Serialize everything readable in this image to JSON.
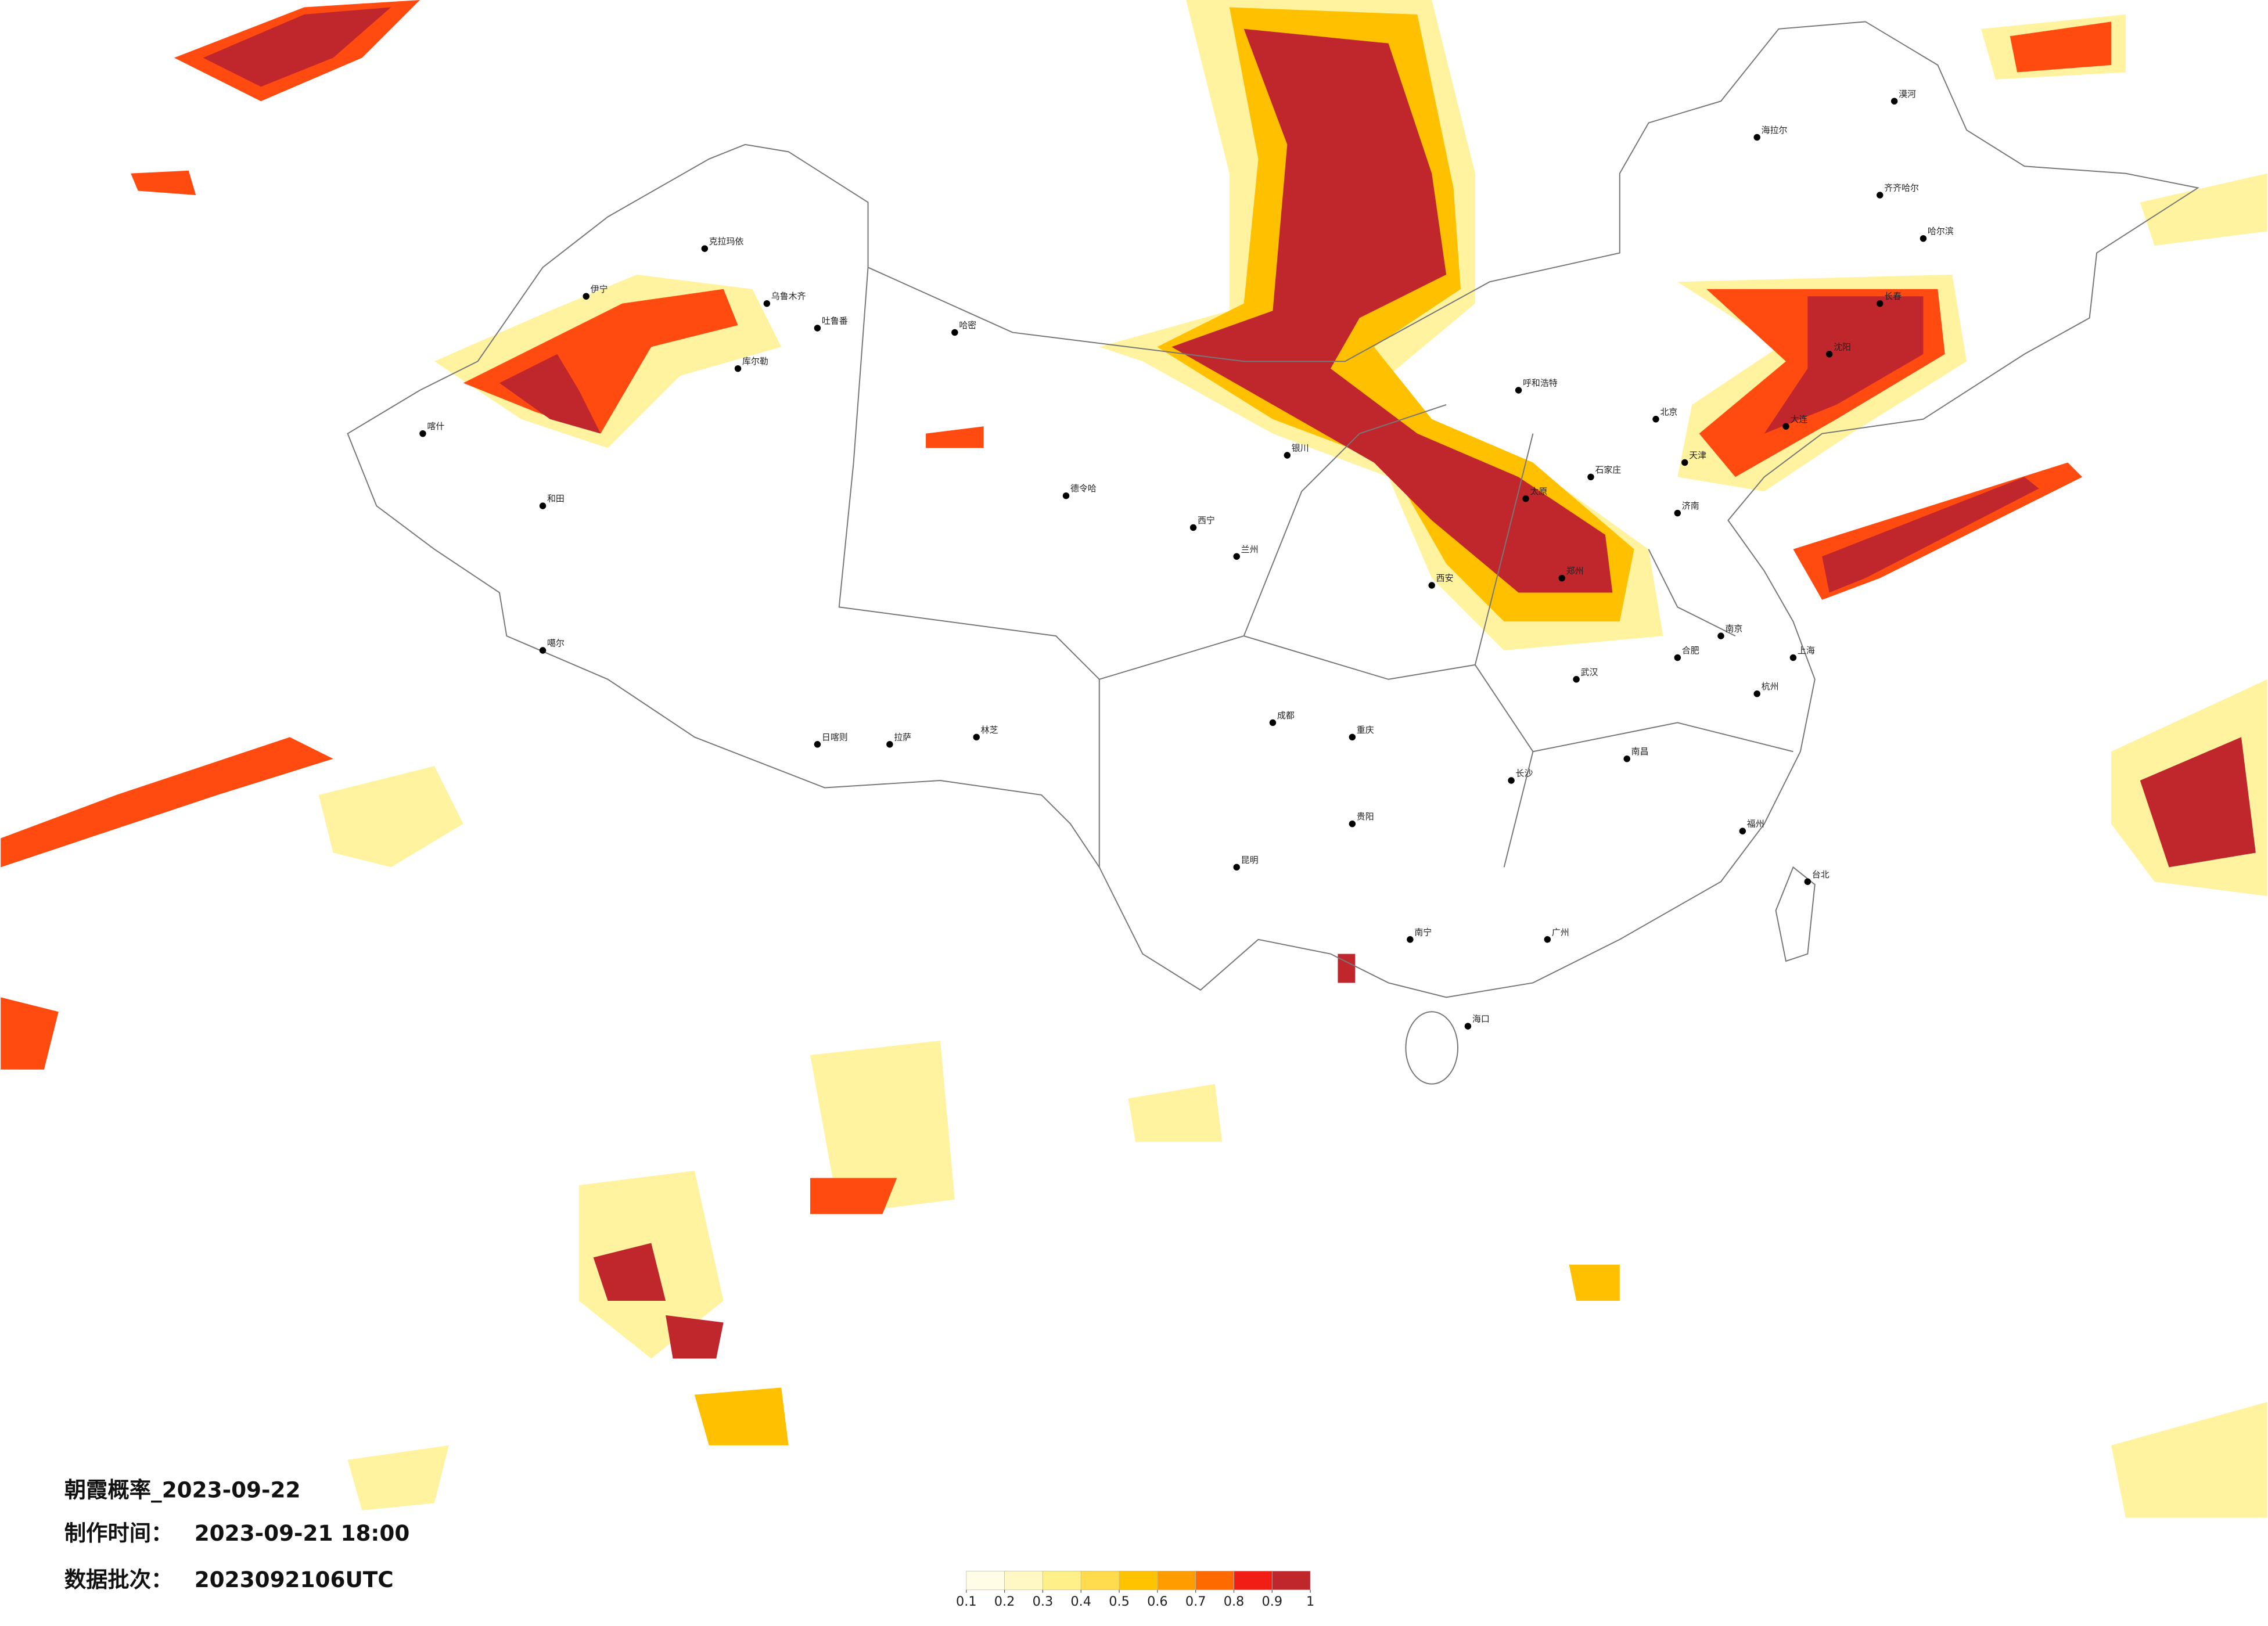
{
  "title": "朝霞概率_2023-09-22",
  "production_label": "制作时间：",
  "production_time": "2023-09-21 18:00",
  "batch_label": "数据批次：",
  "batch": "2023092106UTC",
  "legend": {
    "colors": [
      "#fffde6",
      "#fff8c4",
      "#fff08a",
      "#ffdb4d",
      "#ffc300",
      "#ff9c00",
      "#ff6a00",
      "#f01e14",
      "#c0272d"
    ],
    "ticks": [
      0.1,
      0.2,
      0.3,
      0.4,
      0.5,
      0.6,
      0.7,
      0.8,
      0.9,
      1
    ]
  },
  "cities": [
    {
      "name": "伊宁"
    },
    {
      "name": "克拉玛依"
    },
    {
      "name": "乌鲁木齐"
    },
    {
      "name": "吐鲁番"
    },
    {
      "name": "哈密"
    },
    {
      "name": "库尔勒"
    },
    {
      "name": "喀什"
    },
    {
      "name": "和田"
    },
    {
      "name": "噶尔"
    },
    {
      "name": "日喀则"
    },
    {
      "name": "拉萨"
    },
    {
      "name": "林芝"
    },
    {
      "name": "德令哈"
    },
    {
      "name": "西宁"
    },
    {
      "name": "兰州"
    },
    {
      "name": "银川"
    },
    {
      "name": "呼和浩特"
    },
    {
      "name": "北京"
    },
    {
      "name": "天津"
    },
    {
      "name": "石家庄"
    },
    {
      "name": "太原"
    },
    {
      "name": "济南"
    },
    {
      "name": "郑州"
    },
    {
      "name": "西安"
    },
    {
      "name": "成都"
    },
    {
      "name": "重庆"
    },
    {
      "name": "贵阳"
    },
    {
      "name": "昆明"
    },
    {
      "name": "南宁"
    },
    {
      "name": "广州"
    },
    {
      "name": "海口"
    },
    {
      "name": "长沙"
    },
    {
      "name": "武汉"
    },
    {
      "name": "南昌"
    },
    {
      "name": "合肥"
    },
    {
      "name": "南京"
    },
    {
      "name": "上海"
    },
    {
      "name": "杭州"
    },
    {
      "name": "福州"
    },
    {
      "name": "台北"
    },
    {
      "name": "沈阳"
    },
    {
      "name": "长春"
    },
    {
      "name": "哈尔滨"
    },
    {
      "name": "齐齐哈尔"
    },
    {
      "name": "大连"
    },
    {
      "name": "海拉尔"
    },
    {
      "name": "漠河"
    }
  ]
}
